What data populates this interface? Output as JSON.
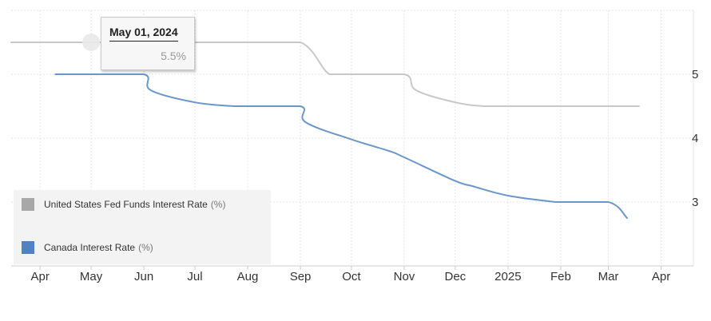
{
  "colors": {
    "us_series": "#c8c8c8",
    "canada_series": "#6b96c9",
    "us_swatch": "#a8a8a8",
    "canada_swatch": "#4f84c4",
    "grid": "#e6e6e6",
    "axis": "#cccccc"
  },
  "tooltip": {
    "date": "May 01, 2024",
    "value": "5.5%"
  },
  "legend": [
    {
      "label": "United States Fed Funds Interest Rate",
      "unit": "(%)"
    },
    {
      "label": "Canada Interest Rate",
      "unit": "(%)"
    }
  ],
  "chart_data": {
    "type": "line",
    "title": "",
    "xlabel": "",
    "ylabel": "",
    "y_ticks": [
      3,
      4,
      5
    ],
    "x_ticks": [
      {
        "label": "Apr",
        "date": "2024-04-01"
      },
      {
        "label": "May",
        "date": "2024-05-01"
      },
      {
        "label": "Jun",
        "date": "2024-06-01"
      },
      {
        "label": "Jul",
        "date": "2024-07-01"
      },
      {
        "label": "Aug",
        "date": "2024-08-01"
      },
      {
        "label": "Sep",
        "date": "2024-09-01"
      },
      {
        "label": "Oct",
        "date": "2024-10-01"
      },
      {
        "label": "Nov",
        "date": "2024-11-01"
      },
      {
        "label": "Dec",
        "date": "2024-12-01"
      },
      {
        "label": "2025",
        "date": "2025-01-01"
      },
      {
        "label": "Feb",
        "date": "2025-02-01"
      },
      {
        "label": "Mar",
        "date": "2025-03-01"
      },
      {
        "label": "Apr",
        "date": "2025-04-01"
      }
    ],
    "xlim": [
      "2024-03-15",
      "2025-04-20"
    ],
    "ylim": [
      2.0,
      6.0
    ],
    "grid": true,
    "y_axis_side": "right",
    "legend_position": "bottom-left",
    "series": [
      {
        "name": "United States Fed Funds Interest Rate",
        "unit": "(%)",
        "color": "#c8c8c8",
        "points": [
          [
            "2024-03-15",
            5.5
          ],
          [
            "2024-05-01",
            5.5
          ],
          [
            "2024-06-01",
            5.5
          ],
          [
            "2024-07-01",
            5.5
          ],
          [
            "2024-08-01",
            5.5
          ],
          [
            "2024-09-01",
            5.5
          ],
          [
            "2024-09-18",
            5.0
          ],
          [
            "2024-10-01",
            5.0
          ],
          [
            "2024-11-01",
            5.0
          ],
          [
            "2024-11-08",
            4.75
          ],
          [
            "2024-12-01",
            4.56
          ],
          [
            "2024-12-18",
            4.5
          ],
          [
            "2025-01-01",
            4.5
          ],
          [
            "2025-02-01",
            4.5
          ],
          [
            "2025-03-01",
            4.5
          ],
          [
            "2025-03-19",
            4.5
          ]
        ]
      },
      {
        "name": "Canada Interest Rate",
        "unit": "(%)",
        "color": "#6b96c9",
        "points": [
          [
            "2024-04-10",
            5.0
          ],
          [
            "2024-05-01",
            5.0
          ],
          [
            "2024-06-01",
            5.0
          ],
          [
            "2024-06-05",
            4.75
          ],
          [
            "2024-07-01",
            4.56
          ],
          [
            "2024-07-24",
            4.5
          ],
          [
            "2024-08-01",
            4.5
          ],
          [
            "2024-09-01",
            4.5
          ],
          [
            "2024-09-04",
            4.25
          ],
          [
            "2024-10-01",
            3.98
          ],
          [
            "2024-10-23",
            3.8
          ],
          [
            "2024-11-01",
            3.7
          ],
          [
            "2024-12-01",
            3.33
          ],
          [
            "2024-12-11",
            3.25
          ],
          [
            "2025-01-01",
            3.1
          ],
          [
            "2025-01-29",
            3.0
          ],
          [
            "2025-02-01",
            3.0
          ],
          [
            "2025-03-01",
            3.0
          ],
          [
            "2025-03-12",
            2.75
          ]
        ]
      }
    ]
  }
}
